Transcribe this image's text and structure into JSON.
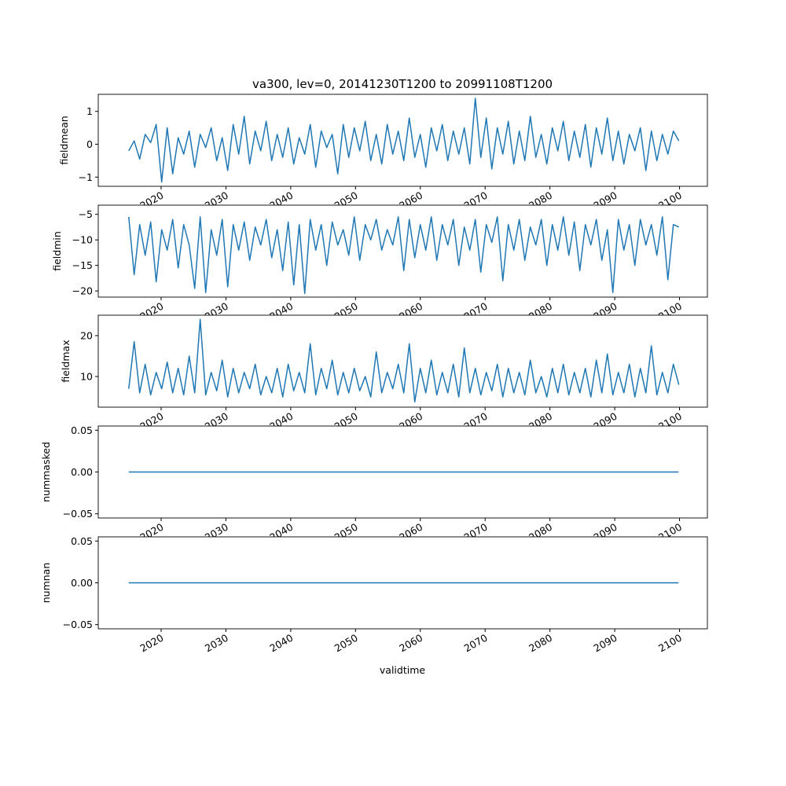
{
  "chart_data": {
    "type": "line",
    "title": "va300, lev=0, 20141230T1200 to 20991108T1200",
    "xlabel": "validtime",
    "x_ticks": [
      "2020",
      "2030",
      "2040",
      "2050",
      "2060",
      "2070",
      "2080",
      "2090",
      "2100"
    ],
    "x_tick_values": [
      2020,
      2030,
      2040,
      2050,
      2060,
      2070,
      2080,
      2090,
      2100
    ],
    "xlim": [
      2010.3,
      2104.3
    ],
    "line_color": "#1f77b4",
    "panels": [
      {
        "ylabel": "fieldmean",
        "ylim": [
          -1.28,
          1.52
        ],
        "y_ticks": [
          "−1",
          "0",
          "1"
        ],
        "y_tick_values": [
          -1,
          0,
          1
        ],
        "x_start": 2015.0,
        "x_step": 0.849,
        "values": [
          -0.2,
          0.1,
          -0.45,
          0.3,
          0.05,
          0.6,
          -1.15,
          0.5,
          -0.9,
          0.2,
          -0.3,
          0.4,
          -0.7,
          0.3,
          -0.1,
          0.5,
          -0.5,
          0.2,
          -0.8,
          0.6,
          -0.3,
          0.85,
          -0.6,
          0.4,
          -0.2,
          0.7,
          -0.5,
          0.3,
          -0.4,
          0.5,
          -0.6,
          0.2,
          -0.3,
          0.6,
          -0.7,
          0.4,
          -0.1,
          0.3,
          -0.9,
          0.6,
          -0.4,
          0.5,
          -0.2,
          0.7,
          -0.5,
          0.3,
          -0.6,
          0.6,
          -0.3,
          0.4,
          -0.5,
          0.8,
          -0.4,
          0.3,
          -0.7,
          0.5,
          -0.2,
          0.6,
          -0.5,
          0.4,
          -0.3,
          0.5,
          -0.6,
          1.4,
          -0.4,
          0.8,
          -0.75,
          0.5,
          -0.3,
          0.7,
          -0.6,
          0.4,
          -0.5,
          0.85,
          -0.4,
          0.3,
          -0.6,
          0.5,
          -0.2,
          0.7,
          -0.5,
          0.4,
          -0.4,
          0.6,
          -0.7,
          0.5,
          -0.3,
          0.8,
          -0.5,
          0.4,
          -0.6,
          0.3,
          -0.2,
          0.5,
          -0.8,
          0.4,
          -0.5,
          0.3,
          -0.3,
          0.4,
          0.1
        ]
      },
      {
        "ylabel": "fieldmin",
        "ylim": [
          -21.2,
          -3.2
        ],
        "y_ticks": [
          "−20",
          "−15",
          "−10",
          "−5"
        ],
        "y_tick_values": [
          -20,
          -15,
          -10,
          -5
        ],
        "x_start": 2015.0,
        "x_step": 0.849,
        "values": [
          -5.5,
          -16.8,
          -7,
          -13,
          -6.5,
          -18.2,
          -8,
          -12,
          -6,
          -15.5,
          -7,
          -11,
          -19.5,
          -5.5,
          -20.3,
          -8,
          -13,
          -6,
          -19.2,
          -7,
          -12,
          -6.5,
          -14,
          -7.5,
          -11,
          -6,
          -13.5,
          -8,
          -16,
          -6.5,
          -18.8,
          -7,
          -20.5,
          -6,
          -12,
          -7,
          -15,
          -6.5,
          -11,
          -8,
          -13,
          -5.5,
          -14,
          -7,
          -10,
          -6,
          -12,
          -8,
          -11,
          -5.5,
          -16,
          -6,
          -13.5,
          -7,
          -12,
          -5.5,
          -14,
          -7,
          -11,
          -6,
          -15,
          -7.5,
          -12,
          -6,
          -16.3,
          -7,
          -10.5,
          -5.5,
          -18,
          -7,
          -12,
          -6,
          -14,
          -7.5,
          -11,
          -6,
          -15,
          -7,
          -12,
          -5.5,
          -13,
          -6.5,
          -16,
          -7,
          -11,
          -6,
          -14,
          -8,
          -20.3,
          -6,
          -12,
          -7,
          -15,
          -6,
          -11,
          -7,
          -13,
          -5.5,
          -17.8,
          -7,
          -7.5
        ]
      },
      {
        "ylabel": "fieldmax",
        "ylim": [
          2.5,
          25.0
        ],
        "y_ticks": [
          "10",
          "20"
        ],
        "y_tick_values": [
          10,
          20
        ],
        "x_start": 2015.0,
        "x_step": 0.849,
        "values": [
          7,
          18.5,
          6,
          13,
          5.5,
          11,
          7,
          13.5,
          6,
          12,
          5.5,
          15,
          6,
          24,
          5.5,
          11,
          6.5,
          14,
          5,
          12,
          6,
          11,
          7,
          13,
          5.5,
          10,
          6,
          12,
          5,
          13,
          6.5,
          11,
          6,
          18,
          5.5,
          12,
          7,
          14,
          5.5,
          11,
          6,
          12,
          6.5,
          10,
          5,
          16,
          6,
          11,
          7,
          13,
          6,
          18,
          3.8,
          12,
          6,
          14,
          5.5,
          11,
          6,
          13,
          5,
          17,
          6,
          12,
          5.5,
          11,
          6.5,
          13,
          5,
          12,
          6,
          11,
          5.5,
          14,
          6,
          10,
          5,
          12,
          6,
          13,
          5.5,
          11,
          6,
          12,
          5,
          14,
          6,
          15.5,
          5.5,
          11,
          6,
          13,
          5,
          12,
          6,
          17.5,
          5.5,
          11,
          6,
          13,
          8
        ]
      },
      {
        "ylabel": "nummasked",
        "ylim": [
          -0.055,
          0.055
        ],
        "y_ticks": [
          "−0.05",
          "0.00",
          "0.05"
        ],
        "y_tick_values": [
          -0.05,
          0,
          0.05
        ],
        "x_start": 2015.0,
        "x_step": 84.85,
        "values": [
          0,
          0
        ]
      },
      {
        "ylabel": "numnan",
        "ylim": [
          -0.055,
          0.055
        ],
        "y_ticks": [
          "−0.05",
          "0.00",
          "0.05"
        ],
        "y_tick_values": [
          -0.05,
          0,
          0.05
        ],
        "x_start": 2015.0,
        "x_step": 84.85,
        "values": [
          0,
          0
        ]
      }
    ]
  }
}
